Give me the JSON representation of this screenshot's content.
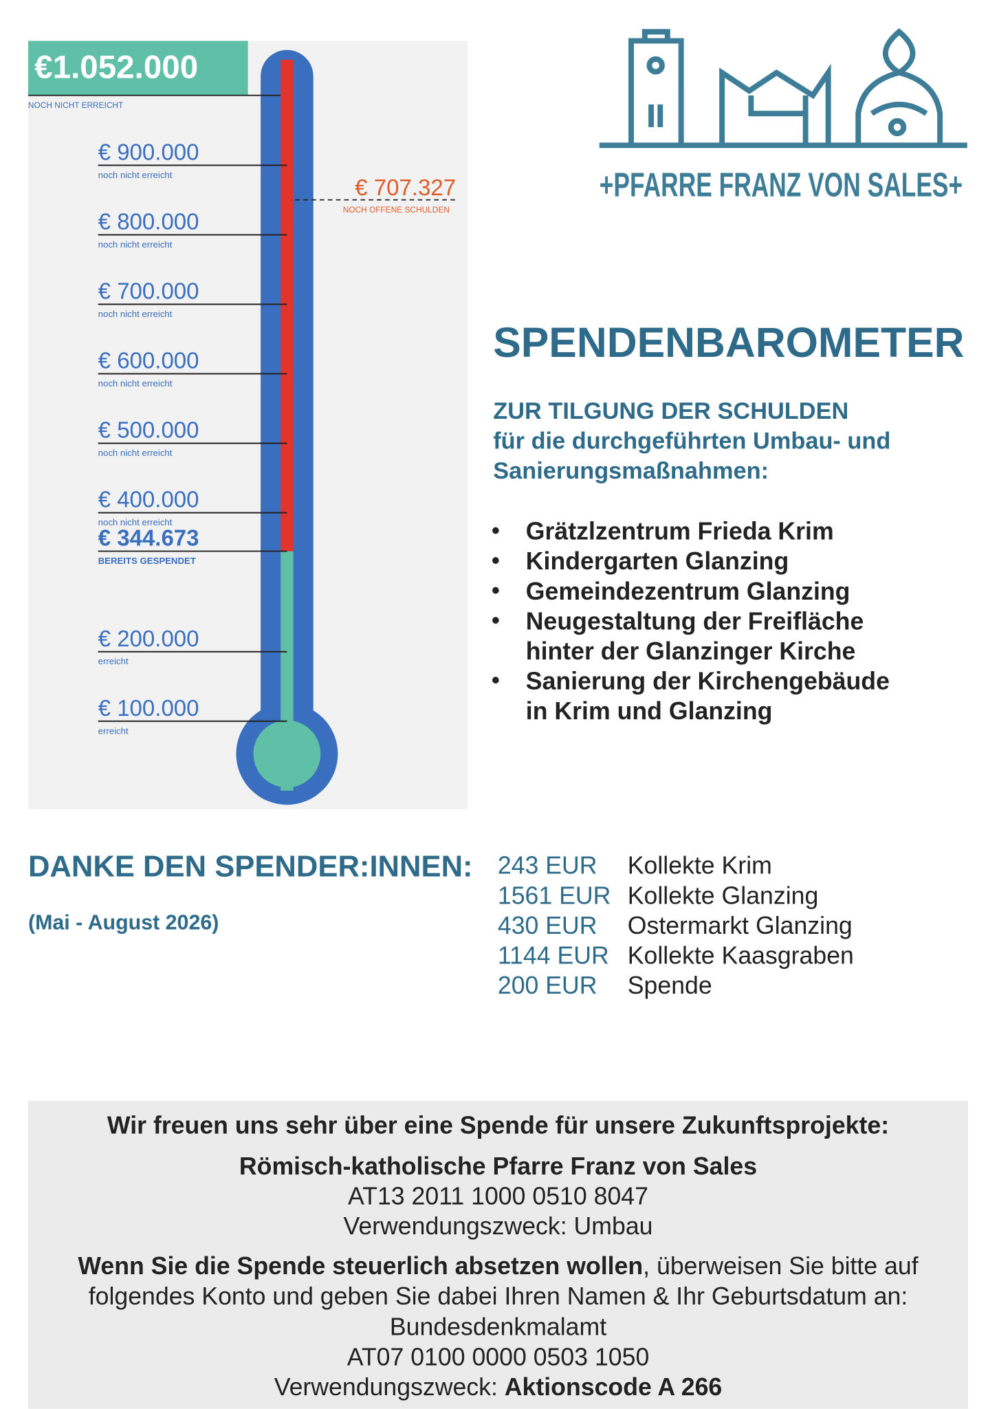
{
  "thermometer": {
    "goal": {
      "value": 1052000,
      "label": "€1.052.000",
      "note": "NOCH NICHT ERREICHT"
    },
    "open": {
      "value": 707327,
      "label": "€ 707.327",
      "note": "NOCH OFFENE SCHULDEN"
    },
    "donated": {
      "value": 344673,
      "label": "€ 344.673",
      "note": "BEREITS GESPENDET"
    },
    "ticks": [
      {
        "value": 900000,
        "label": "€ 900.000",
        "note": "noch nicht erreicht"
      },
      {
        "value": 800000,
        "label": "€ 800.000",
        "note": "noch nicht erreicht"
      },
      {
        "value": 700000,
        "label": "€ 700.000",
        "note": "noch nicht erreicht"
      },
      {
        "value": 600000,
        "label": "€ 600.000",
        "note": "noch nicht erreicht"
      },
      {
        "value": 500000,
        "label": "€ 500.000",
        "note": "noch nicht erreicht"
      },
      {
        "value": 400000,
        "label": "€ 400.000",
        "note": "noch nicht erreicht"
      },
      {
        "value": 200000,
        "label": "€ 200.000",
        "note": "erreicht"
      },
      {
        "value": 100000,
        "label": "€ 100.000",
        "note": "erreicht"
      }
    ]
  },
  "logo": {
    "text": "+PFARRE FRANZ VON SALES+"
  },
  "intro": {
    "title": "SPENDENBAROMETER",
    "subtitle": [
      "ZUR TILGUNG DER SCHULDEN",
      "für die durchgeführten Umbau- und",
      "Sanierungsmaßnahmen:"
    ],
    "bullets": [
      [
        "Grätzlzentrum Frieda Krim"
      ],
      [
        "Kindergarten Glanzing"
      ],
      [
        "Gemeindezentrum Glanzing"
      ],
      [
        "Neugestaltung der Freifläche",
        "hinter der Glanzinger Kirche"
      ],
      [
        "Sanierung der Kirchengebäude",
        "in Krim und Glanzing"
      ]
    ]
  },
  "donors": {
    "heading": "DANKE DEN SPENDER:INNEN:",
    "period": "(Mai - August 2026)",
    "rows": [
      [
        "243 EUR",
        "Kollekte Krim"
      ],
      [
        "1561 EUR",
        "Kollekte Glanzing"
      ],
      [
        "430 EUR",
        "Ostermarkt Glanzing"
      ],
      [
        "1144 EUR",
        "Kollekte Kaasgraben"
      ],
      [
        "200 EUR",
        "Spende"
      ]
    ]
  },
  "footer": {
    "intro": "Wir freuen uns sehr über eine Spende für unsere Zukunftsprojekte:",
    "account1": {
      "name": "Römisch-katholische Pfarre Franz von Sales",
      "iban": "AT13 2011 1000 0510 8047",
      "purpose": "Verwendungszweck: Umbau"
    },
    "tax_bold": "Wenn Sie die Spende steuerlich absetzen wollen",
    "tax_rest": ", überweisen Sie bitte auf",
    "tax_line2": "folgendes Konto und geben Sie dabei Ihren Namen & Ihr Geburtsdatum an:",
    "account2": {
      "name": "Bundesdenkmalamt",
      "iban": "AT07 0100 0000 0503 1050",
      "purpose_label": "Verwendungszweck: ",
      "purpose_code": "Aktionscode A 266"
    }
  }
}
